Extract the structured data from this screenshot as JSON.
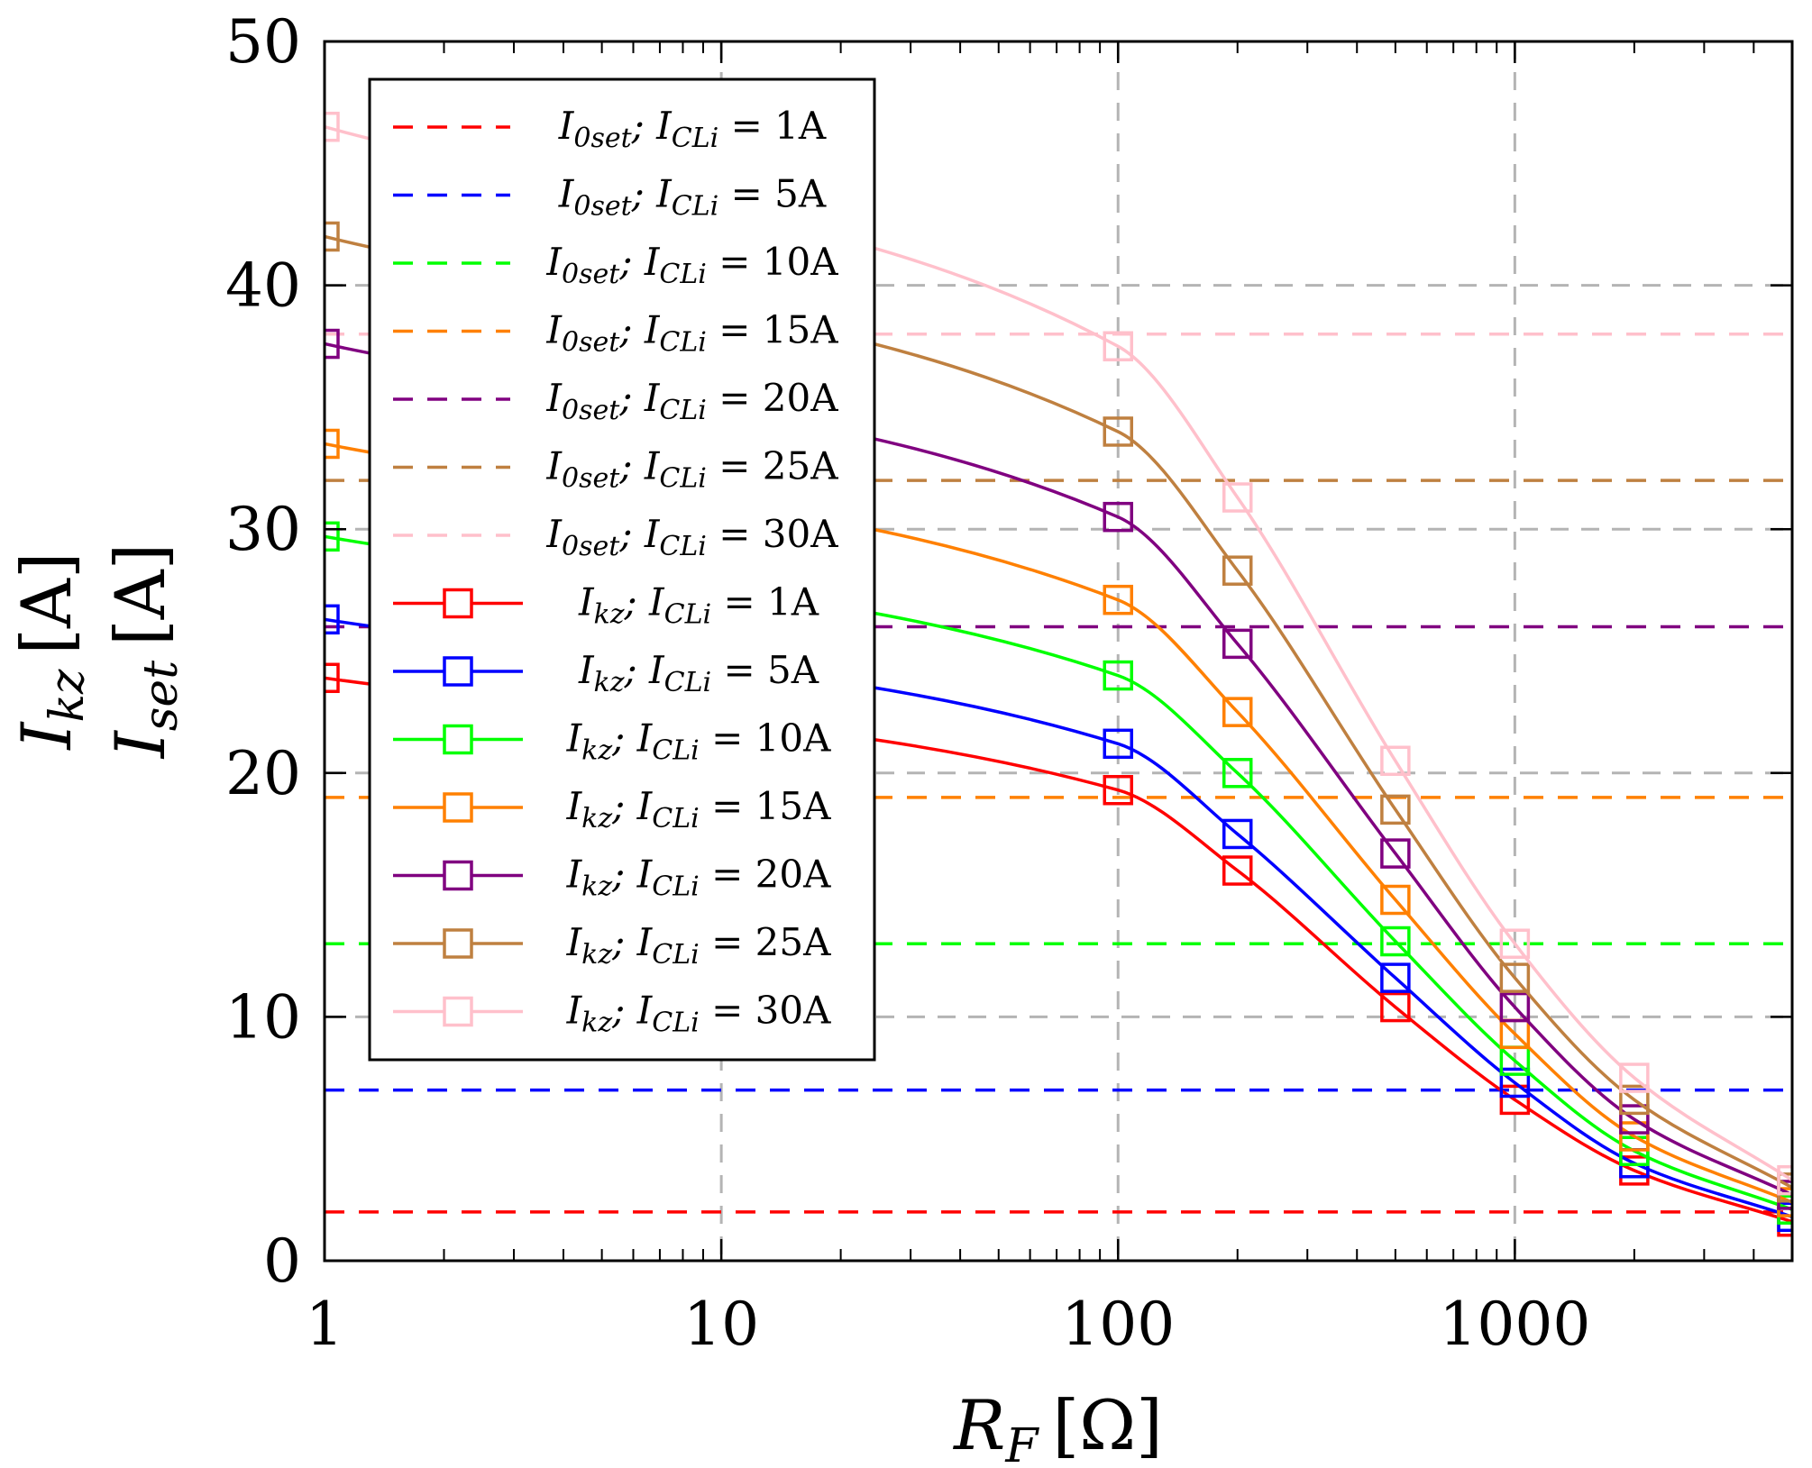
{
  "chart_data": {
    "type": "line",
    "xscale": "log",
    "xlabel": "R_F [Ω]",
    "xlabel_main": "R",
    "xlabel_sub": "F",
    "xlabel_unit": "[Ω]",
    "ylabel_1": "I_kz [A]",
    "ylabel_2": "I_set [A]",
    "ylabel_1_main": "I",
    "ylabel_1_sub": "kz",
    "ylabel_2_main": "I",
    "ylabel_2_sub": "set",
    "ylabel_unit": "[A]",
    "xlim": [
      1,
      5000
    ],
    "ylim": [
      0,
      50
    ],
    "x_ticks": [
      1,
      10,
      100,
      1000
    ],
    "x_tick_labels": [
      "1",
      "10",
      "100",
      "1000"
    ],
    "y_ticks": [
      0,
      10,
      20,
      30,
      40,
      50
    ],
    "y_tick_labels": [
      "0",
      "10",
      "20",
      "30",
      "40",
      "50"
    ],
    "grid": true,
    "legend_position": "top-left",
    "x": [
      1,
      100,
      200,
      500,
      1000,
      2000,
      5000
    ],
    "threshold_series": [
      {
        "name": "I0set;ICLi=1A",
        "legend_prefix": "I",
        "legend_sub1": "0set",
        "legend_mid": "; I",
        "legend_sub2": "CLi",
        "legend_eq": " = 1A",
        "color": "#ff0000",
        "value": 2
      },
      {
        "name": "I0set;ICLi=5A",
        "legend_prefix": "I",
        "legend_sub1": "0set",
        "legend_mid": "; I",
        "legend_sub2": "CLi",
        "legend_eq": " = 5A",
        "color": "#0000ff",
        "value": 7
      },
      {
        "name": "I0set;ICLi=10A",
        "legend_prefix": "I",
        "legend_sub1": "0set",
        "legend_mid": "; I",
        "legend_sub2": "CLi",
        "legend_eq": " = 10A",
        "color": "#00ff00",
        "value": 13
      },
      {
        "name": "I0set;ICLi=15A",
        "legend_prefix": "I",
        "legend_sub1": "0set",
        "legend_mid": "; I",
        "legend_sub2": "CLi",
        "legend_eq": " = 15A",
        "color": "#ff8000",
        "value": 19
      },
      {
        "name": "I0set;ICLi=20A",
        "legend_prefix": "I",
        "legend_sub1": "0set",
        "legend_mid": "; I",
        "legend_sub2": "CLi",
        "legend_eq": " = 20A",
        "color": "#800080",
        "value": 26
      },
      {
        "name": "I0set;ICLi=25A",
        "legend_prefix": "I",
        "legend_sub1": "0set",
        "legend_mid": "; I",
        "legend_sub2": "CLi",
        "legend_eq": " = 25A",
        "color": "#bf8040",
        "value": 32
      },
      {
        "name": "I0set;ICLi=30A",
        "legend_prefix": "I",
        "legend_sub1": "0set",
        "legend_mid": "; I",
        "legend_sub2": "CLi",
        "legend_eq": " = 30A",
        "color": "#ffc0cb",
        "value": 38
      }
    ],
    "series": [
      {
        "name": "Ikz;ICLi=1A",
        "legend_prefix": "I",
        "legend_sub1": "kz",
        "legend_mid": "; I",
        "legend_sub2": "CLi",
        "legend_eq": " = 1A",
        "color": "#ff0000",
        "values": [
          23.9,
          19.3,
          16.0,
          10.4,
          6.6,
          3.7,
          1.6
        ]
      },
      {
        "name": "Ikz;ICLi=5A",
        "legend_prefix": "I",
        "legend_sub1": "kz",
        "legend_mid": "; I",
        "legend_sub2": "CLi",
        "legend_eq": " = 5A",
        "color": "#0000ff",
        "values": [
          26.3,
          21.2,
          17.5,
          11.6,
          7.3,
          4.0,
          1.8
        ]
      },
      {
        "name": "Ikz;ICLi=10A",
        "legend_prefix": "I",
        "legend_sub1": "kz",
        "legend_mid": "; I",
        "legend_sub2": "CLi",
        "legend_eq": " = 10A",
        "color": "#00ff00",
        "values": [
          29.7,
          24.0,
          20.0,
          13.1,
          8.2,
          4.5,
          2.1
        ]
      },
      {
        "name": "Ikz;ICLi=15A",
        "legend_prefix": "I",
        "legend_sub1": "kz",
        "legend_mid": "; I",
        "legend_sub2": "CLi",
        "legend_eq": " = 15A",
        "color": "#ff8000",
        "values": [
          33.5,
          27.1,
          22.5,
          14.8,
          9.3,
          5.1,
          2.4
        ]
      },
      {
        "name": "Ikz;ICLi=20A",
        "legend_prefix": "I",
        "legend_sub1": "kz",
        "legend_mid": "; I",
        "legend_sub2": "CLi",
        "legend_eq": " = 20A",
        "color": "#800080",
        "values": [
          37.6,
          30.5,
          25.3,
          16.7,
          10.4,
          5.8,
          2.7
        ]
      },
      {
        "name": "Ikz;ICLi=25A",
        "legend_prefix": "I",
        "legend_sub1": "kz",
        "legend_mid": "; I",
        "legend_sub2": "CLi",
        "legend_eq": " = 25A",
        "color": "#bf8040",
        "values": [
          42.0,
          34.0,
          28.3,
          18.5,
          11.6,
          6.6,
          3.0
        ]
      },
      {
        "name": "Ikz;ICLi=30A",
        "legend_prefix": "I",
        "legend_sub1": "kz",
        "legend_mid": "; I",
        "legend_sub2": "CLi",
        "legend_eq": " = 30A",
        "color": "#ffc0cb",
        "values": [
          46.5,
          37.5,
          31.3,
          20.5,
          13.0,
          7.5,
          3.3
        ]
      }
    ]
  }
}
